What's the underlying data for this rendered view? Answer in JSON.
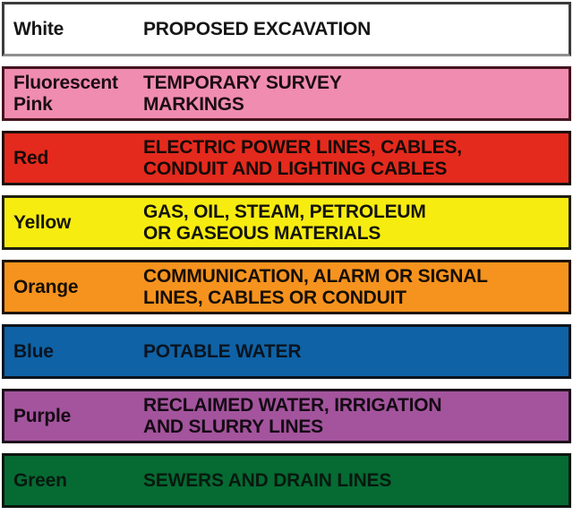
{
  "page": {
    "background": "#ffffff",
    "description": "Uniform color code legend mapping marking colors to utility types"
  },
  "chart_data": {
    "type": "table",
    "title": "",
    "columns": [
      "Color",
      "Meaning"
    ],
    "rows": [
      {
        "color": "White",
        "meaning": "PROPOSED EXCAVATION"
      },
      {
        "color": "Fluorescent Pink",
        "meaning": "TEMPORARY SURVEY MARKINGS"
      },
      {
        "color": "Red",
        "meaning": "ELECTRIC POWER LINES, CABLES, CONDUIT AND LIGHTING CABLES"
      },
      {
        "color": "Yellow",
        "meaning": "GAS, OIL, STEAM, PETROLEUM OR GASEOUS MATERIALS"
      },
      {
        "color": "Orange",
        "meaning": "COMMUNICATION, ALARM OR SIGNAL LINES, CABLES OR CONDUIT"
      },
      {
        "color": "Blue",
        "meaning": "POTABLE WATER"
      },
      {
        "color": "Purple",
        "meaning": "RECLAIMED WATER, IRRIGATION AND SLURRY LINES"
      },
      {
        "color": "Green",
        "meaning": "SEWERS AND DRAIN LINES"
      }
    ]
  },
  "bands": [
    {
      "id": "white",
      "label_lines": [
        "White"
      ],
      "description_lines": [
        "PROPOSED EXCAVATION"
      ],
      "fill": "#ffffff",
      "border": "#3c3c3c",
      "border_bottom": "#8f8f8f",
      "text_color": "#161616"
    },
    {
      "id": "fluorescent-pink",
      "label_lines": [
        "Fluorescent",
        "Pink"
      ],
      "description_lines": [
        "TEMPORARY SURVEY",
        "MARKINGS"
      ],
      "fill": "#f08cb0",
      "border": "#44141f",
      "border_bottom": "",
      "text_color": "#1c0d12"
    },
    {
      "id": "red",
      "label_lines": [
        "Red"
      ],
      "description_lines": [
        "ELECTRIC POWER LINES, CABLES,",
        "CONDUIT AND LIGHTING CABLES"
      ],
      "fill": "#e42a1d",
      "border": "#1e0f0c",
      "border_bottom": "",
      "text_color": "#160b09"
    },
    {
      "id": "yellow",
      "label_lines": [
        "Yellow"
      ],
      "description_lines": [
        "GAS, OIL, STEAM, PETROLEUM",
        "OR GASEOUS MATERIALS"
      ],
      "fill": "#f7ec10",
      "border": "#20200e",
      "border_bottom": "",
      "text_color": "#15150a"
    },
    {
      "id": "orange",
      "label_lines": [
        "Orange"
      ],
      "description_lines": [
        "COMMUNICATION, ALARM OR SIGNAL",
        "LINES, CABLES OR CONDUIT"
      ],
      "fill": "#f6931e",
      "border": "#1f1408",
      "border_bottom": "",
      "text_color": "#170f06"
    },
    {
      "id": "blue",
      "label_lines": [
        "Blue"
      ],
      "description_lines": [
        "POTABLE WATER"
      ],
      "fill": "#0f62a5",
      "border": "#0c141c",
      "border_bottom": "",
      "text_color": "#0a1420"
    },
    {
      "id": "purple",
      "label_lines": [
        "Purple"
      ],
      "description_lines": [
        "RECLAIMED WATER, IRRIGATION",
        "AND SLURRY LINES"
      ],
      "fill": "#a3549d",
      "border": "#1d0f1c",
      "border_bottom": "",
      "text_color": "#150a14"
    },
    {
      "id": "green",
      "label_lines": [
        "Green"
      ],
      "description_lines": [
        "SEWERS AND DRAIN LINES"
      ],
      "fill": "#056b33",
      "border": "#0c160e",
      "border_bottom": "",
      "text_color": "#08190f"
    }
  ]
}
